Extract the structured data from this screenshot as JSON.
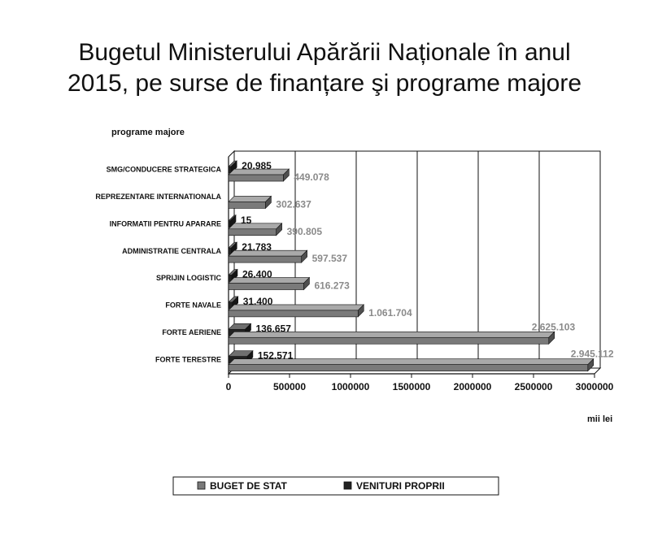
{
  "title_lines": [
    "Bugetul Ministerului Apărării Naționale în anul",
    "2015, pe surse de finanțare şi programe majore"
  ],
  "chart_data": {
    "type": "bar",
    "orientation": "horizontal",
    "stacked": false,
    "three_d": true,
    "ylabel": "programe majore",
    "xlabel": "mii lei",
    "xlim": [
      0,
      3000000
    ],
    "xticks": [
      0,
      500000,
      1000000,
      1500000,
      2000000,
      2500000,
      3000000
    ],
    "grid": "vertical",
    "legend_position": "bottom",
    "categories": [
      "SMG/CONDUCERE STRATEGICA",
      "REPREZENTARE INTERNATIONALA",
      "INFORMATII PENTRU APARARE",
      "ADMINISTRATIE CENTRALA",
      "SPRIJIN LOGISTIC",
      "FORTE NAVALE",
      "FORTE AERIENE",
      "FORTE TERESTRE"
    ],
    "series": [
      {
        "name": "BUGET DE STAT",
        "color": "#7a7a7a",
        "values": [
          449078,
          302637,
          390805,
          597537,
          616273,
          1061704,
          2625103,
          2945112
        ],
        "labels": [
          "449.078",
          "302.637",
          "390.805",
          "597.537",
          "616.273",
          "1.061.704",
          "2.625.103",
          "2.945.112"
        ]
      },
      {
        "name": "VENITURI PROPRII",
        "color": "#222222",
        "values": [
          20985,
          0,
          15,
          21783,
          26400,
          31400,
          136657,
          152571
        ],
        "labels": [
          "20.985",
          "",
          "15",
          "21.783",
          "26.400",
          "31.400",
          "136.657",
          "152.571"
        ]
      }
    ]
  }
}
